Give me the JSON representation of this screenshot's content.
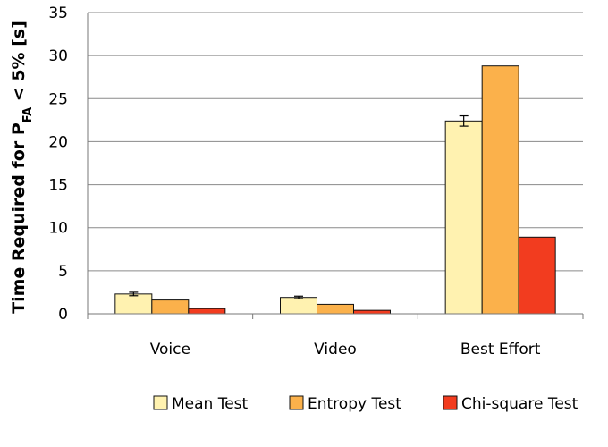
{
  "chart_data": {
    "type": "bar",
    "categories": [
      "Voice",
      "Video",
      "Best Effort"
    ],
    "ylabel": {
      "prefix": "Time Required for  P",
      "subscript": "FA",
      "suffix": " < 5% [s]"
    },
    "ylim": [
      0,
      35
    ],
    "yticks": [
      0,
      5,
      10,
      15,
      20,
      25,
      30,
      35
    ],
    "grid": true,
    "legend_position": "bottom-right",
    "series": [
      {
        "name": "Mean Test",
        "color": "#fff2b0",
        "values": [
          2.3,
          1.9,
          22.4
        ],
        "errors": [
          0.2,
          0.15,
          0.6
        ]
      },
      {
        "name": "Entropy Test",
        "color": "#fbb14b",
        "values": [
          1.6,
          1.1,
          28.8
        ]
      },
      {
        "name": "Chi-square Test",
        "color": "#f23c1f",
        "values": [
          0.6,
          0.4,
          8.9
        ]
      }
    ]
  }
}
